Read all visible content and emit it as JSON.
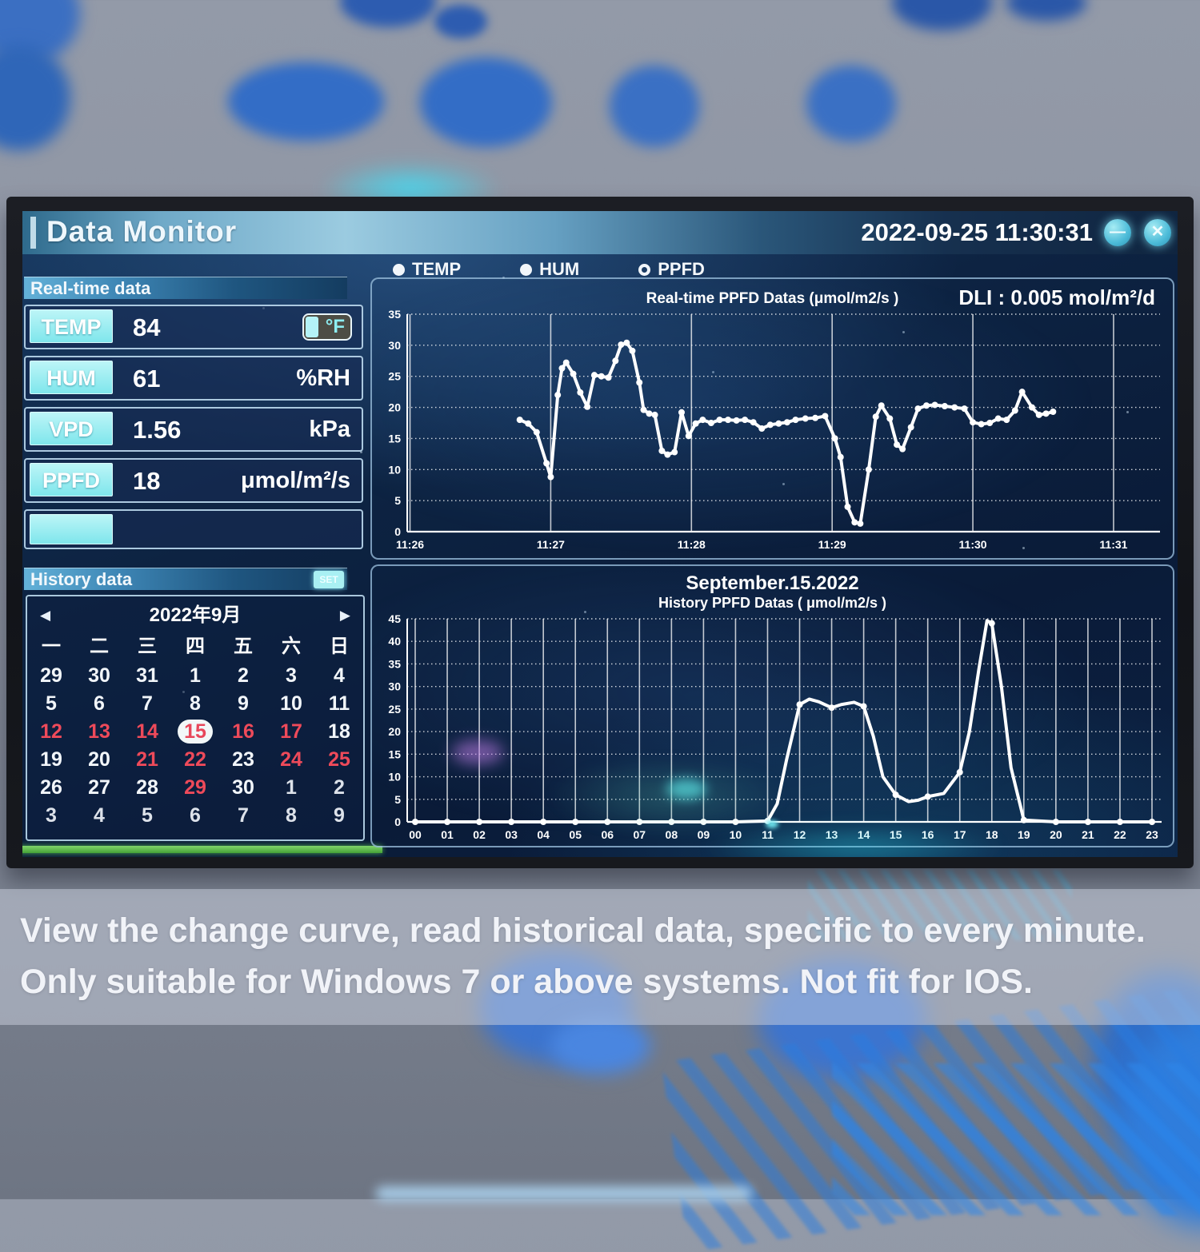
{
  "colors": {
    "accent_cyan": "#8deef0",
    "calendar_red": "#ee4a5a",
    "green_bar": "#55b44a",
    "chart_line": "#ffffff",
    "screen_bg": "#0d2342"
  },
  "titlebar": {
    "title": "Data Monitor",
    "datetime": "2022-09-25 11:30:31",
    "minimize_icon": "—",
    "close_icon": "✕"
  },
  "radio_group": [
    {
      "label": "TEMP",
      "selected": false
    },
    {
      "label": "HUM",
      "selected": false
    },
    {
      "label": "PPFD",
      "selected": true
    }
  ],
  "realtime_panel": {
    "header": "Real-time data",
    "rows": [
      {
        "label": "TEMP",
        "value": "84",
        "unit": "°F",
        "toggle": true
      },
      {
        "label": "HUM",
        "value": "61",
        "unit": "%RH",
        "toggle": false
      },
      {
        "label": "VPD",
        "value": "1.56",
        "unit": "kPa",
        "toggle": false
      },
      {
        "label": "PPFD",
        "value": "18",
        "unit": "μmol/m²/s",
        "toggle": false
      }
    ]
  },
  "history_panel": {
    "header": "History data",
    "set_button": "SET",
    "calendar": {
      "month_label": "2022年9月",
      "prev_icon": "◀",
      "next_icon": "▶",
      "weekdays": [
        "一",
        "二",
        "三",
        "四",
        "五",
        "六",
        "日"
      ],
      "weeks": [
        [
          {
            "d": "29",
            "state": "normal"
          },
          {
            "d": "30",
            "state": "normal"
          },
          {
            "d": "31",
            "state": "normal"
          },
          {
            "d": "1",
            "state": "normal"
          },
          {
            "d": "2",
            "state": "normal"
          },
          {
            "d": "3",
            "state": "normal"
          },
          {
            "d": "4",
            "state": "normal"
          }
        ],
        [
          {
            "d": "5",
            "state": "normal"
          },
          {
            "d": "6",
            "state": "normal"
          },
          {
            "d": "7",
            "state": "normal"
          },
          {
            "d": "8",
            "state": "normal"
          },
          {
            "d": "9",
            "state": "normal"
          },
          {
            "d": "10",
            "state": "normal"
          },
          {
            "d": "11",
            "state": "normal"
          }
        ],
        [
          {
            "d": "12",
            "state": "red"
          },
          {
            "d": "13",
            "state": "red"
          },
          {
            "d": "14",
            "state": "red"
          },
          {
            "d": "15",
            "state": "selected"
          },
          {
            "d": "16",
            "state": "red"
          },
          {
            "d": "17",
            "state": "red"
          },
          {
            "d": "18",
            "state": "normal"
          }
        ],
        [
          {
            "d": "19",
            "state": "normal"
          },
          {
            "d": "20",
            "state": "normal"
          },
          {
            "d": "21",
            "state": "red"
          },
          {
            "d": "22",
            "state": "red"
          },
          {
            "d": "23",
            "state": "normal"
          },
          {
            "d": "24",
            "state": "red"
          },
          {
            "d": "25",
            "state": "red"
          }
        ],
        [
          {
            "d": "26",
            "state": "normal"
          },
          {
            "d": "27",
            "state": "normal"
          },
          {
            "d": "28",
            "state": "normal"
          },
          {
            "d": "29",
            "state": "red"
          },
          {
            "d": "30",
            "state": "normal"
          },
          {
            "d": "1",
            "state": "muted"
          },
          {
            "d": "2",
            "state": "muted"
          }
        ],
        [
          {
            "d": "3",
            "state": "muted"
          },
          {
            "d": "4",
            "state": "muted"
          },
          {
            "d": "5",
            "state": "muted"
          },
          {
            "d": "6",
            "state": "muted"
          },
          {
            "d": "7",
            "state": "muted"
          },
          {
            "d": "8",
            "state": "muted"
          },
          {
            "d": "9",
            "state": "muted"
          }
        ]
      ]
    }
  },
  "chart_data": [
    {
      "type": "line",
      "title": "Real-time PPFD Datas (μmol/m2/s )",
      "dli_label": "DLI : 0.005 mol/m²/d",
      "ylim": [
        0,
        35
      ],
      "yticks": [
        0,
        5,
        10,
        15,
        20,
        25,
        30,
        35
      ],
      "xlim": [
        -0.02,
        5.33
      ],
      "xticks": [
        {
          "v": 0,
          "label": "11:26"
        },
        {
          "v": 1,
          "label": "11:27"
        },
        {
          "v": 2,
          "label": "11:28"
        },
        {
          "v": 3,
          "label": "11:29"
        },
        {
          "v": 4,
          "label": "11:30"
        },
        {
          "v": 5,
          "label": "11:31"
        }
      ],
      "points": [
        [
          0.78,
          18
        ],
        [
          0.84,
          17.4
        ],
        [
          0.9,
          16
        ],
        [
          0.97,
          11
        ],
        [
          1.0,
          8.8
        ],
        [
          1.05,
          22
        ],
        [
          1.08,
          26.3
        ],
        [
          1.11,
          27.2
        ],
        [
          1.16,
          25.4
        ],
        [
          1.21,
          22.4
        ],
        [
          1.26,
          20.1
        ],
        [
          1.31,
          25.2
        ],
        [
          1.36,
          25
        ],
        [
          1.41,
          24.8
        ],
        [
          1.46,
          27.5
        ],
        [
          1.5,
          30.1
        ],
        [
          1.54,
          30.4
        ],
        [
          1.58,
          29.1
        ],
        [
          1.63,
          24
        ],
        [
          1.66,
          19.6
        ],
        [
          1.7,
          19
        ],
        [
          1.74,
          18.8
        ],
        [
          1.79,
          13
        ],
        [
          1.83,
          12.4
        ],
        [
          1.88,
          12.8
        ],
        [
          1.93,
          19.2
        ],
        [
          1.98,
          15.4
        ],
        [
          2.03,
          17.4
        ],
        [
          2.08,
          18
        ],
        [
          2.14,
          17.5
        ],
        [
          2.2,
          18
        ],
        [
          2.26,
          18
        ],
        [
          2.32,
          17.9
        ],
        [
          2.38,
          18
        ],
        [
          2.44,
          17.6
        ],
        [
          2.5,
          16.6
        ],
        [
          2.56,
          17.2
        ],
        [
          2.62,
          17.4
        ],
        [
          2.68,
          17.6
        ],
        [
          2.74,
          18
        ],
        [
          2.81,
          18.2
        ],
        [
          2.88,
          18.3
        ],
        [
          2.95,
          18.6
        ],
        [
          3.02,
          15
        ],
        [
          3.06,
          12
        ],
        [
          3.11,
          4
        ],
        [
          3.16,
          1.5
        ],
        [
          3.2,
          1.3
        ],
        [
          3.26,
          10
        ],
        [
          3.31,
          18.5
        ],
        [
          3.35,
          20.3
        ],
        [
          3.41,
          18.2
        ],
        [
          3.46,
          14
        ],
        [
          3.5,
          13.3
        ],
        [
          3.56,
          16.8
        ],
        [
          3.61,
          19.8
        ],
        [
          3.67,
          20.3
        ],
        [
          3.73,
          20.4
        ],
        [
          3.8,
          20.2
        ],
        [
          3.87,
          20
        ],
        [
          3.94,
          19.8
        ],
        [
          4.0,
          17.6
        ],
        [
          4.06,
          17.3
        ],
        [
          4.12,
          17.5
        ],
        [
          4.18,
          18.2
        ],
        [
          4.24,
          18
        ],
        [
          4.3,
          19.5
        ],
        [
          4.35,
          22.5
        ],
        [
          4.42,
          20
        ],
        [
          4.47,
          18.8
        ],
        [
          4.52,
          19
        ],
        [
          4.57,
          19.3
        ]
      ],
      "grid": true,
      "legend_position": "none"
    },
    {
      "type": "line",
      "title": "September.15.2022",
      "subtitle": "History PPFD Datas ( μmol/m2/s )",
      "ylim": [
        0,
        45
      ],
      "yticks": [
        0,
        5,
        10,
        15,
        20,
        25,
        30,
        35,
        40,
        45
      ],
      "xlim": [
        -0.25,
        23.3
      ],
      "xticks": [
        {
          "v": 0,
          "label": "00"
        },
        {
          "v": 1,
          "label": "01"
        },
        {
          "v": 2,
          "label": "02"
        },
        {
          "v": 3,
          "label": "03"
        },
        {
          "v": 4,
          "label": "04"
        },
        {
          "v": 5,
          "label": "05"
        },
        {
          "v": 6,
          "label": "06"
        },
        {
          "v": 7,
          "label": "07"
        },
        {
          "v": 8,
          "label": "08"
        },
        {
          "v": 9,
          "label": "09"
        },
        {
          "v": 10,
          "label": "10"
        },
        {
          "v": 11,
          "label": "11"
        },
        {
          "v": 12,
          "label": "12"
        },
        {
          "v": 13,
          "label": "13"
        },
        {
          "v": 14,
          "label": "14"
        },
        {
          "v": 15,
          "label": "15"
        },
        {
          "v": 16,
          "label": "16"
        },
        {
          "v": 17,
          "label": "17"
        },
        {
          "v": 18,
          "label": "18"
        },
        {
          "v": 19,
          "label": "19"
        },
        {
          "v": 20,
          "label": "20"
        },
        {
          "v": 21,
          "label": "21"
        },
        {
          "v": 22,
          "label": "22"
        },
        {
          "v": 23,
          "label": "23"
        }
      ],
      "points": [
        [
          0,
          0
        ],
        [
          1,
          0
        ],
        [
          2,
          0
        ],
        [
          3,
          0
        ],
        [
          4,
          0
        ],
        [
          5,
          0
        ],
        [
          6,
          0
        ],
        [
          7,
          0
        ],
        [
          8,
          0
        ],
        [
          9,
          0
        ],
        [
          10,
          0
        ],
        [
          11,
          0.2
        ],
        [
          11.3,
          4
        ],
        [
          11.6,
          14
        ],
        [
          12,
          26
        ],
        [
          12.3,
          27.2
        ],
        [
          12.6,
          26.6
        ],
        [
          13,
          25.3
        ],
        [
          13.3,
          26
        ],
        [
          13.7,
          26.5
        ],
        [
          14,
          25.6
        ],
        [
          14.3,
          19
        ],
        [
          14.6,
          10
        ],
        [
          15,
          6
        ],
        [
          15.4,
          4.5
        ],
        [
          15.7,
          4.8
        ],
        [
          16,
          5.6
        ],
        [
          16.5,
          6.3
        ],
        [
          17,
          11
        ],
        [
          17.3,
          20
        ],
        [
          17.6,
          34
        ],
        [
          17.85,
          44.6
        ],
        [
          18,
          44
        ],
        [
          18.3,
          30
        ],
        [
          18.6,
          12
        ],
        [
          19,
          0.4
        ],
        [
          20,
          0
        ],
        [
          21,
          0
        ],
        [
          22,
          0
        ],
        [
          23,
          0
        ]
      ],
      "markers": [
        [
          0,
          0
        ],
        [
          1,
          0
        ],
        [
          2,
          0
        ],
        [
          3,
          0
        ],
        [
          4,
          0
        ],
        [
          5,
          0
        ],
        [
          6,
          0
        ],
        [
          7,
          0
        ],
        [
          8,
          0
        ],
        [
          9,
          0
        ],
        [
          10,
          0
        ],
        [
          11,
          0.2
        ],
        [
          12,
          26
        ],
        [
          13,
          25.3
        ],
        [
          14,
          25.6
        ],
        [
          15,
          6
        ],
        [
          16,
          5.6
        ],
        [
          17,
          11
        ],
        [
          18,
          44
        ],
        [
          19,
          0.4
        ],
        [
          20,
          0
        ],
        [
          21,
          0
        ],
        [
          22,
          0
        ],
        [
          23,
          0
        ]
      ],
      "grid": true,
      "legend_position": "none"
    }
  ],
  "caption": {
    "line1": "View the change curve, read historical data, specific to every minute.",
    "line2": "Only suitable for Windows 7 or above systems. Not fit for IOS."
  }
}
